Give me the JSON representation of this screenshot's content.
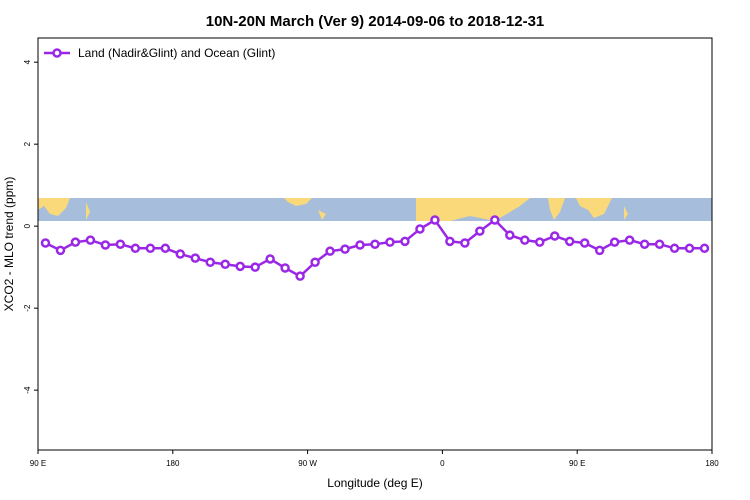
{
  "chart_data": {
    "type": "line",
    "title": "10N-20N March (Ver 9)   2014-09-06 to 2018-12-31",
    "x_label": "Longitude (deg E)",
    "y_label": "XCO2 - MLO trend (ppm)",
    "x": [
      95,
      105,
      115,
      125,
      135,
      145,
      155,
      165,
      175,
      185,
      195,
      205,
      215,
      225,
      235,
      245,
      255,
      265,
      275,
      285,
      295,
      305,
      315,
      325,
      335,
      345,
      355,
      365,
      375,
      385,
      395,
      405,
      415,
      425,
      435,
      445,
      455,
      465,
      475,
      485,
      495,
      505,
      515,
      525,
      535
    ],
    "series": [
      {
        "name": "Land (Nadir&Glint) and Ocean (Glint)",
        "color": "#9b27e6",
        "values": [
          -0.41,
          -0.59,
          -0.39,
          -0.34,
          -0.46,
          -0.44,
          -0.54,
          -0.54,
          -0.54,
          -0.68,
          -0.78,
          -0.88,
          -0.93,
          -0.98,
          -1.0,
          -0.8,
          -1.02,
          -1.22,
          -0.88,
          -0.61,
          -0.56,
          -0.46,
          -0.44,
          -0.39,
          -0.37,
          -0.07,
          0.15,
          -0.37,
          -0.41,
          -0.12,
          0.15,
          -0.22,
          -0.34,
          -0.39,
          -0.24,
          -0.37,
          -0.41,
          -0.59,
          -0.39,
          -0.34,
          -0.44,
          -0.44,
          -0.54,
          -0.54,
          -0.54
        ]
      }
    ],
    "xlim": [
      90,
      540
    ],
    "ylim": [
      -5.46,
      4.59
    ],
    "xticks": [
      {
        "value": 90,
        "label": "90 E"
      },
      180,
      {
        "value": 270,
        "label": "90 W"
      },
      {
        "value": 360,
        "label": "0"
      },
      {
        "value": 450,
        "label": "90 E"
      },
      {
        "value": 540,
        "label": "180"
      }
    ],
    "yticks": [
      -4,
      -2,
      0,
      2,
      4
    ],
    "legend": "top-left"
  }
}
